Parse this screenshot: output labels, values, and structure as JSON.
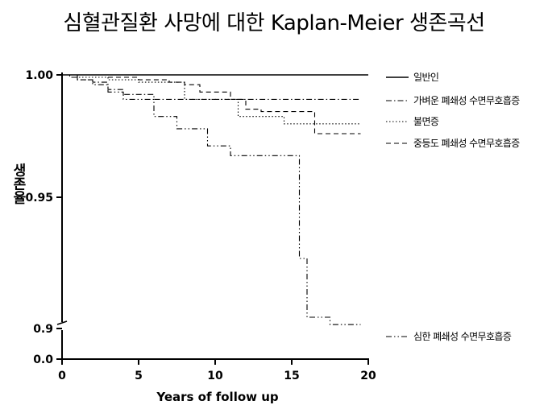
{
  "chart_data": {
    "type": "line",
    "title": "심혈관질환 사망에 대한 Kaplan-Meier 생존곡선",
    "xlabel": "Years of follow up",
    "ylabel": "생존율",
    "xlim": [
      0,
      20
    ],
    "x_ticks": [
      "0",
      "5",
      "10",
      "15",
      "20"
    ],
    "y_ticks": [
      "1.00",
      "0.95",
      "0.9",
      "0.0"
    ],
    "y_axis_note": "broken axis between 0.9 and 0.0",
    "series": [
      {
        "name": "일반인",
        "style": "solid",
        "x": [
          0,
          20
        ],
        "y": [
          1.0,
          1.0
        ]
      },
      {
        "name": "가벼운 폐쇄성 수면무호흡증",
        "style": "dash-dot",
        "x": [
          0,
          0.5,
          1.0,
          2.0,
          3.0,
          4.0,
          6.0,
          19.5
        ],
        "y": [
          1.0,
          0.999,
          0.998,
          0.997,
          0.994,
          0.992,
          0.99,
          0.99
        ]
      },
      {
        "name": "불면증",
        "style": "dotted",
        "x": [
          0,
          1.0,
          3.0,
          5.0,
          8.0,
          11.5,
          14.5,
          19.5
        ],
        "y": [
          1.0,
          0.999,
          0.998,
          0.997,
          0.99,
          0.983,
          0.98,
          0.98
        ]
      },
      {
        "name": "중등도 폐쇄성 수면무호흡증",
        "style": "dashed",
        "x": [
          0,
          3.0,
          5.0,
          7.0,
          8.0,
          9.0,
          11.0,
          12.0,
          13.0,
          16.5,
          19.5
        ],
        "y": [
          1.0,
          0.999,
          0.998,
          0.997,
          0.996,
          0.993,
          0.99,
          0.986,
          0.985,
          0.976,
          0.976
        ]
      },
      {
        "name": "심한 폐쇄성 수면무호흡증",
        "style": "dash-dot-dot",
        "x": [
          0,
          1.0,
          2.0,
          3.0,
          4.0,
          6.0,
          7.5,
          9.5,
          11.0,
          15.0,
          15.5,
          16.0,
          17.5,
          19.5
        ],
        "y": [
          1.0,
          0.998,
          0.996,
          0.993,
          0.99,
          0.983,
          0.978,
          0.971,
          0.967,
          0.967,
          0.925,
          0.901,
          0.898,
          0.898
        ]
      }
    ]
  }
}
